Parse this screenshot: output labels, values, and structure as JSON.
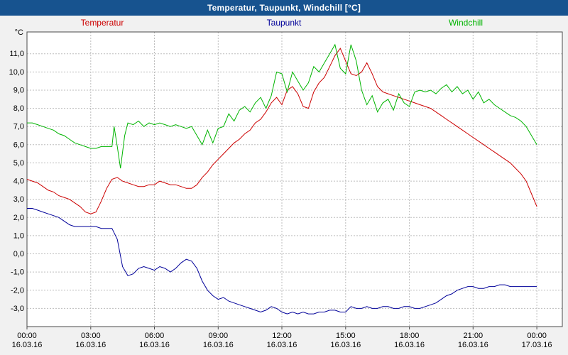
{
  "title_bar": {
    "title": "Temperatur, Taupunkt, Windchill [°C]",
    "bg_color": "#17538f",
    "text_color": "#ffffff"
  },
  "chart_data": {
    "type": "line",
    "title": "Temperatur, Taupunkt, Windchill [°C]",
    "ylabel": "°C",
    "xlabel": "",
    "ylim": [
      -4,
      12.2
    ],
    "x_axis_hours_span": 25.2,
    "grid": "dashed",
    "legend_position": "top",
    "colors": {
      "outer_bg": "#f1f1f1",
      "plot_bg": "#ffffff",
      "grid": "#bdbdbd",
      "border": "#4a4a4a",
      "tick_text": "#000000"
    },
    "y_ticks": [
      {
        "value": 11,
        "label": "11,0"
      },
      {
        "value": 10,
        "label": "10,0"
      },
      {
        "value": 9,
        "label": "9,0"
      },
      {
        "value": 8,
        "label": "8,0"
      },
      {
        "value": 7,
        "label": "7,0"
      },
      {
        "value": 6,
        "label": "6,0"
      },
      {
        "value": 5,
        "label": "5,0"
      },
      {
        "value": 4,
        "label": "4,0"
      },
      {
        "value": 3,
        "label": "3,0"
      },
      {
        "value": 2,
        "label": "2,0"
      },
      {
        "value": 1,
        "label": "1,0"
      },
      {
        "value": 0,
        "label": "0,0"
      },
      {
        "value": -1,
        "label": "-1,0"
      },
      {
        "value": -2,
        "label": "-2,0"
      },
      {
        "value": -3,
        "label": "-3,0"
      }
    ],
    "x_ticks": [
      {
        "hour": 0,
        "time": "00:00",
        "date": "16.03.16"
      },
      {
        "hour": 3,
        "time": "03:00",
        "date": "16.03.16"
      },
      {
        "hour": 6,
        "time": "06:00",
        "date": "16.03.16"
      },
      {
        "hour": 9,
        "time": "09:00",
        "date": "16.03.16"
      },
      {
        "hour": 12,
        "time": "12:00",
        "date": "16.03.16"
      },
      {
        "hour": 15,
        "time": "15:00",
        "date": "16.03.16"
      },
      {
        "hour": 18,
        "time": "18:00",
        "date": "16.03.16"
      },
      {
        "hour": 21,
        "time": "21:00",
        "date": "16.03.16"
      },
      {
        "hour": 24,
        "time": "00:00",
        "date": "17.03.16"
      }
    ],
    "series": [
      {
        "name": "Temperatur",
        "color": "#cc0000",
        "points": [
          [
            0,
            4.1
          ],
          [
            0.25,
            4.0
          ],
          [
            0.5,
            3.9
          ],
          [
            0.75,
            3.7
          ],
          [
            1,
            3.5
          ],
          [
            1.25,
            3.4
          ],
          [
            1.5,
            3.2
          ],
          [
            1.75,
            3.1
          ],
          [
            2,
            3.0
          ],
          [
            2.25,
            2.8
          ],
          [
            2.5,
            2.6
          ],
          [
            2.75,
            2.3
          ],
          [
            3,
            2.2
          ],
          [
            3.25,
            2.3
          ],
          [
            3.5,
            2.9
          ],
          [
            3.75,
            3.6
          ],
          [
            4,
            4.1
          ],
          [
            4.25,
            4.2
          ],
          [
            4.5,
            4.0
          ],
          [
            4.75,
            3.9
          ],
          [
            5,
            3.8
          ],
          [
            5.25,
            3.7
          ],
          [
            5.5,
            3.7
          ],
          [
            5.75,
            3.8
          ],
          [
            6,
            3.8
          ],
          [
            6.25,
            4.0
          ],
          [
            6.5,
            3.9
          ],
          [
            6.75,
            3.8
          ],
          [
            7,
            3.8
          ],
          [
            7.25,
            3.7
          ],
          [
            7.5,
            3.6
          ],
          [
            7.75,
            3.6
          ],
          [
            8,
            3.8
          ],
          [
            8.25,
            4.2
          ],
          [
            8.5,
            4.5
          ],
          [
            8.75,
            4.9
          ],
          [
            9,
            5.2
          ],
          [
            9.25,
            5.5
          ],
          [
            9.5,
            5.8
          ],
          [
            9.75,
            6.1
          ],
          [
            10,
            6.3
          ],
          [
            10.25,
            6.6
          ],
          [
            10.5,
            6.8
          ],
          [
            10.75,
            7.2
          ],
          [
            11,
            7.4
          ],
          [
            11.25,
            7.8
          ],
          [
            11.5,
            8.3
          ],
          [
            11.75,
            8.6
          ],
          [
            12,
            8.2
          ],
          [
            12.25,
            9.0
          ],
          [
            12.5,
            9.2
          ],
          [
            12.75,
            8.8
          ],
          [
            13,
            8.1
          ],
          [
            13.25,
            8.0
          ],
          [
            13.5,
            8.9
          ],
          [
            13.75,
            9.4
          ],
          [
            14,
            9.7
          ],
          [
            14.25,
            10.3
          ],
          [
            14.5,
            10.9
          ],
          [
            14.75,
            11.3
          ],
          [
            15,
            10.6
          ],
          [
            15.25,
            9.9
          ],
          [
            15.5,
            9.8
          ],
          [
            15.75,
            10.0
          ],
          [
            16,
            10.5
          ],
          [
            16.25,
            9.9
          ],
          [
            16.5,
            9.2
          ],
          [
            16.75,
            8.9
          ],
          [
            17,
            8.8
          ],
          [
            17.25,
            8.7
          ],
          [
            17.5,
            8.6
          ],
          [
            17.75,
            8.5
          ],
          [
            18,
            8.4
          ],
          [
            18.25,
            8.3
          ],
          [
            18.5,
            8.2
          ],
          [
            18.75,
            8.1
          ],
          [
            19,
            8.0
          ],
          [
            19.25,
            7.8
          ],
          [
            19.5,
            7.6
          ],
          [
            19.75,
            7.4
          ],
          [
            20,
            7.2
          ],
          [
            20.25,
            7.0
          ],
          [
            20.5,
            6.8
          ],
          [
            20.75,
            6.6
          ],
          [
            21,
            6.4
          ],
          [
            21.25,
            6.2
          ],
          [
            21.5,
            6.0
          ],
          [
            21.75,
            5.8
          ],
          [
            22,
            5.6
          ],
          [
            22.25,
            5.4
          ],
          [
            22.5,
            5.2
          ],
          [
            22.75,
            5.0
          ],
          [
            23,
            4.7
          ],
          [
            23.25,
            4.4
          ],
          [
            23.5,
            4.0
          ],
          [
            23.75,
            3.3
          ],
          [
            24,
            2.6
          ]
        ]
      },
      {
        "name": "Taupunkt",
        "color": "#000099",
        "points": [
          [
            0,
            2.5
          ],
          [
            0.25,
            2.5
          ],
          [
            0.5,
            2.4
          ],
          [
            0.75,
            2.3
          ],
          [
            1,
            2.2
          ],
          [
            1.25,
            2.1
          ],
          [
            1.5,
            2.0
          ],
          [
            1.75,
            1.8
          ],
          [
            2,
            1.6
          ],
          [
            2.25,
            1.5
          ],
          [
            2.5,
            1.5
          ],
          [
            2.75,
            1.5
          ],
          [
            3,
            1.5
          ],
          [
            3.25,
            1.5
          ],
          [
            3.5,
            1.4
          ],
          [
            3.75,
            1.4
          ],
          [
            4,
            1.4
          ],
          [
            4.25,
            0.8
          ],
          [
            4.5,
            -0.7
          ],
          [
            4.75,
            -1.2
          ],
          [
            5,
            -1.1
          ],
          [
            5.25,
            -0.8
          ],
          [
            5.5,
            -0.7
          ],
          [
            5.75,
            -0.8
          ],
          [
            6,
            -0.9
          ],
          [
            6.25,
            -0.7
          ],
          [
            6.5,
            -0.8
          ],
          [
            6.75,
            -1.0
          ],
          [
            7,
            -0.8
          ],
          [
            7.25,
            -0.5
          ],
          [
            7.5,
            -0.3
          ],
          [
            7.75,
            -0.4
          ],
          [
            8,
            -0.8
          ],
          [
            8.25,
            -1.5
          ],
          [
            8.5,
            -2.0
          ],
          [
            8.75,
            -2.3
          ],
          [
            9,
            -2.5
          ],
          [
            9.25,
            -2.4
          ],
          [
            9.5,
            -2.6
          ],
          [
            9.75,
            -2.7
          ],
          [
            10,
            -2.8
          ],
          [
            10.25,
            -2.9
          ],
          [
            10.5,
            -3.0
          ],
          [
            10.75,
            -3.1
          ],
          [
            11,
            -3.2
          ],
          [
            11.25,
            -3.1
          ],
          [
            11.5,
            -2.9
          ],
          [
            11.75,
            -3.0
          ],
          [
            12,
            -3.2
          ],
          [
            12.25,
            -3.3
          ],
          [
            12.5,
            -3.2
          ],
          [
            12.75,
            -3.3
          ],
          [
            13,
            -3.2
          ],
          [
            13.25,
            -3.3
          ],
          [
            13.5,
            -3.3
          ],
          [
            13.75,
            -3.2
          ],
          [
            14,
            -3.2
          ],
          [
            14.25,
            -3.1
          ],
          [
            14.5,
            -3.1
          ],
          [
            14.75,
            -3.2
          ],
          [
            15,
            -3.2
          ],
          [
            15.25,
            -2.9
          ],
          [
            15.5,
            -3.0
          ],
          [
            15.75,
            -3.0
          ],
          [
            16,
            -2.9
          ],
          [
            16.25,
            -3.0
          ],
          [
            16.5,
            -3.0
          ],
          [
            16.75,
            -2.9
          ],
          [
            17,
            -2.9
          ],
          [
            17.25,
            -3.0
          ],
          [
            17.5,
            -3.0
          ],
          [
            17.75,
            -2.9
          ],
          [
            18,
            -2.9
          ],
          [
            18.25,
            -3.0
          ],
          [
            18.5,
            -3.0
          ],
          [
            18.75,
            -2.9
          ],
          [
            19,
            -2.8
          ],
          [
            19.25,
            -2.7
          ],
          [
            19.5,
            -2.5
          ],
          [
            19.75,
            -2.3
          ],
          [
            20,
            -2.2
          ],
          [
            20.25,
            -2.0
          ],
          [
            20.5,
            -1.9
          ],
          [
            20.75,
            -1.8
          ],
          [
            21,
            -1.8
          ],
          [
            21.25,
            -1.9
          ],
          [
            21.5,
            -1.9
          ],
          [
            21.75,
            -1.8
          ],
          [
            22,
            -1.8
          ],
          [
            22.25,
            -1.7
          ],
          [
            22.5,
            -1.7
          ],
          [
            22.75,
            -1.8
          ],
          [
            23,
            -1.8
          ],
          [
            23.25,
            -1.8
          ],
          [
            23.5,
            -1.8
          ],
          [
            23.75,
            -1.8
          ],
          [
            24,
            -1.8
          ]
        ]
      },
      {
        "name": "Windchill",
        "color": "#00b400",
        "points": [
          [
            0,
            7.2
          ],
          [
            0.25,
            7.2
          ],
          [
            0.5,
            7.1
          ],
          [
            0.75,
            7.0
          ],
          [
            1,
            6.9
          ],
          [
            1.25,
            6.8
          ],
          [
            1.5,
            6.6
          ],
          [
            1.75,
            6.5
          ],
          [
            2,
            6.3
          ],
          [
            2.25,
            6.1
          ],
          [
            2.5,
            6.0
          ],
          [
            2.75,
            5.9
          ],
          [
            3,
            5.8
          ],
          [
            3.25,
            5.8
          ],
          [
            3.5,
            5.9
          ],
          [
            3.75,
            5.9
          ],
          [
            4,
            5.9
          ],
          [
            4.1,
            7.0
          ],
          [
            4.25,
            5.9
          ],
          [
            4.4,
            4.7
          ],
          [
            4.6,
            6.5
          ],
          [
            4.75,
            7.2
          ],
          [
            5,
            7.1
          ],
          [
            5.25,
            7.3
          ],
          [
            5.5,
            7.0
          ],
          [
            5.75,
            7.2
          ],
          [
            6,
            7.1
          ],
          [
            6.25,
            7.2
          ],
          [
            6.5,
            7.1
          ],
          [
            6.75,
            7.0
          ],
          [
            7,
            7.1
          ],
          [
            7.25,
            7.0
          ],
          [
            7.5,
            6.9
          ],
          [
            7.75,
            7.0
          ],
          [
            8,
            6.5
          ],
          [
            8.25,
            6.0
          ],
          [
            8.5,
            6.8
          ],
          [
            8.75,
            6.1
          ],
          [
            9,
            6.9
          ],
          [
            9.25,
            7.0
          ],
          [
            9.5,
            7.7
          ],
          [
            9.75,
            7.3
          ],
          [
            10,
            7.9
          ],
          [
            10.25,
            8.1
          ],
          [
            10.5,
            7.8
          ],
          [
            10.75,
            8.3
          ],
          [
            11,
            8.6
          ],
          [
            11.25,
            8.0
          ],
          [
            11.5,
            8.7
          ],
          [
            11.75,
            10.0
          ],
          [
            12,
            9.9
          ],
          [
            12.25,
            8.9
          ],
          [
            12.5,
            10.0
          ],
          [
            12.75,
            9.5
          ],
          [
            13,
            9.0
          ],
          [
            13.25,
            9.4
          ],
          [
            13.5,
            10.3
          ],
          [
            13.75,
            10.0
          ],
          [
            14,
            10.5
          ],
          [
            14.25,
            11.0
          ],
          [
            14.5,
            11.5
          ],
          [
            14.75,
            10.2
          ],
          [
            15,
            9.9
          ],
          [
            15.25,
            11.5
          ],
          [
            15.5,
            10.6
          ],
          [
            15.75,
            9.0
          ],
          [
            16,
            8.2
          ],
          [
            16.25,
            8.7
          ],
          [
            16.5,
            7.8
          ],
          [
            16.75,
            8.3
          ],
          [
            17,
            8.5
          ],
          [
            17.25,
            7.9
          ],
          [
            17.5,
            8.8
          ],
          [
            17.75,
            8.3
          ],
          [
            18,
            8.1
          ],
          [
            18.25,
            8.9
          ],
          [
            18.5,
            9.0
          ],
          [
            18.75,
            8.9
          ],
          [
            19,
            9.0
          ],
          [
            19.25,
            8.8
          ],
          [
            19.5,
            9.1
          ],
          [
            19.75,
            9.3
          ],
          [
            20,
            8.9
          ],
          [
            20.25,
            9.2
          ],
          [
            20.5,
            8.8
          ],
          [
            20.75,
            9.0
          ],
          [
            21,
            8.5
          ],
          [
            21.25,
            8.9
          ],
          [
            21.5,
            8.3
          ],
          [
            21.75,
            8.5
          ],
          [
            22,
            8.2
          ],
          [
            22.25,
            8.0
          ],
          [
            22.5,
            7.8
          ],
          [
            22.75,
            7.6
          ],
          [
            23,
            7.5
          ],
          [
            23.25,
            7.3
          ],
          [
            23.5,
            7.0
          ],
          [
            23.75,
            6.5
          ],
          [
            24,
            6.0
          ]
        ]
      }
    ]
  }
}
